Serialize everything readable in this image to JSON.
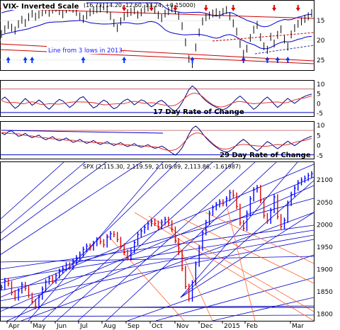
{
  "chart_data": [
    {
      "panel": "vix",
      "type": "line",
      "title": "VIX- Inverted Scale",
      "value_readout": "(16.73, 14.20, 12.60, 13.24, +0.15000)",
      "yticks": [
        "15",
        "20",
        "25"
      ],
      "yscale": "inverted",
      "annotation": "Line from 3 lows in 2013.",
      "colors": {
        "price": "#000000",
        "band": "#0000cc",
        "trend": "#cc0000",
        "arrow_up": "#0033ff",
        "arrow_down": "#dd0000"
      },
      "values": [
        18.4,
        17.2,
        16.1,
        16.8,
        17.5,
        15.9,
        14.8,
        15.6,
        14.1,
        13.2,
        14.0,
        13.5,
        12.9,
        12.3,
        13.0,
        12.2,
        11.8,
        12.6,
        13.4,
        12.1,
        11.6,
        12.0,
        12.8,
        13.9,
        14.6,
        13.7,
        12.9,
        12.4,
        12.1,
        11.9,
        11.4,
        12.2,
        13.8,
        15.6,
        16.9,
        15.2,
        14.0,
        13.1,
        12.8,
        12.4,
        13.5,
        12.9,
        12.0,
        11.7,
        11.5,
        12.3,
        13.6,
        14.4,
        13.2,
        12.6,
        11.9,
        12.4,
        13.8,
        16.4,
        20.5,
        24.7,
        26.2,
        21.8,
        18.0,
        15.2,
        14.1,
        13.7,
        13.2,
        12.9,
        13.5,
        12.8,
        12.3,
        13.9,
        15.7,
        17.8,
        20.9,
        23.4,
        22.1,
        19.4,
        17.3,
        16.1,
        19.2,
        21.5,
        22.4,
        19.1,
        20.8,
        18.6,
        17.2,
        19.8,
        21.6,
        18.5,
        16.9,
        15.8,
        15.2,
        14.6,
        13.9,
        13.1
      ]
    },
    {
      "panel": "roc17",
      "type": "line",
      "title": "17 Day Rate of Change",
      "yticks": [
        "10",
        "5",
        "0",
        "-5"
      ],
      "colors": {
        "line": "#000080",
        "signal": "#dd2222",
        "hline": "#0000cc"
      },
      "values": [
        2.1,
        3.4,
        1.8,
        -0.6,
        -2.4,
        -1.2,
        0.9,
        2.6,
        1.1,
        -0.8,
        0.4,
        1.9,
        0.6,
        -1.5,
        -2.8,
        -1.1,
        0.8,
        2.2,
        1.4,
        -0.3,
        -1.9,
        -0.7,
        1.2,
        2.9,
        3.6,
        1.7,
        -0.4,
        -2.2,
        -1.3,
        0.5,
        1.8,
        0.9,
        -1.1,
        -2.6,
        -1.8,
        0.2,
        1.6,
        2.4,
        1.1,
        -0.6,
        0.7,
        2.0,
        1.3,
        -0.2,
        -1.6,
        -0.5,
        1.0,
        1.7,
        0.4,
        -1.4,
        -2.9,
        -3.8,
        -2.1,
        0.6,
        3.8,
        7.2,
        9.1,
        7.6,
        5.2,
        3.1,
        1.4,
        0.2,
        -0.9,
        -1.8,
        -2.6,
        -3.1,
        -2.4,
        -1.0,
        0.8,
        2.6,
        3.9,
        2.4,
        0.6,
        -1.2,
        -2.9,
        -1.6,
        0.3,
        2.1,
        3.4,
        1.8,
        -0.2,
        -1.9,
        -0.6,
        1.2,
        2.7,
        1.3,
        0.2,
        1.4,
        2.9,
        3.8,
        4.4,
        4.9
      ]
    },
    {
      "panel": "roc29",
      "type": "line",
      "title": "29 Day Rate of Change",
      "yticks": [
        "10",
        "5",
        "0",
        "-5"
      ],
      "colors": {
        "line": "#000080",
        "signal": "#dd2222",
        "hline": "#0000cc"
      },
      "values": [
        6.2,
        5.4,
        6.8,
        7.3,
        5.9,
        4.6,
        5.1,
        6.0,
        4.8,
        3.9,
        4.5,
        5.2,
        3.7,
        2.9,
        3.6,
        4.4,
        3.1,
        2.4,
        3.0,
        3.8,
        2.7,
        1.6,
        2.2,
        3.1,
        2.0,
        1.1,
        1.7,
        2.5,
        1.4,
        0.6,
        1.2,
        2.0,
        0.9,
        0.1,
        0.8,
        1.5,
        0.3,
        -0.4,
        0.2,
        1.0,
        -0.1,
        -0.8,
        -0.2,
        0.5,
        -0.6,
        -1.3,
        -0.9,
        -0.2,
        -1.1,
        -2.4,
        -3.6,
        -4.6,
        -3.2,
        -1.0,
        2.2,
        5.6,
        8.4,
        9.6,
        8.1,
        5.9,
        3.8,
        2.1,
        0.6,
        -0.7,
        -1.8,
        -2.7,
        -3.2,
        -2.6,
        -1.3,
        0.4,
        1.9,
        3.1,
        1.8,
        0.2,
        -1.4,
        -2.6,
        -1.2,
        0.5,
        2.0,
        1.1,
        -0.4,
        -1.5,
        -0.3,
        1.0,
        2.2,
        1.0,
        0.0,
        1.1,
        2.4,
        3.3,
        4.0,
        4.6
      ]
    },
    {
      "panel": "spx",
      "type": "line",
      "title": "SPX",
      "value_readout": "(2,115.30, 2,119.59, 2,109.89, 2,113.86, -1.61987)",
      "yticks": [
        "2100",
        "2050",
        "2000",
        "1950",
        "1900",
        "1850",
        "1800"
      ],
      "ylim": [
        1785,
        2140
      ],
      "xlabels": [
        "Apr",
        "May",
        "Jun",
        "Jul",
        "Aug",
        "Sep",
        "Oct",
        "Nov",
        "Dec",
        "2015",
        "Feb",
        "Mar"
      ],
      "colors": {
        "up": "#0000ff",
        "down": "#dd0000",
        "trendline": "#0000cc",
        "fan": "#ff6633",
        "level": "#222288"
      },
      "values": [
        1860,
        1875,
        1868,
        1848,
        1836,
        1852,
        1866,
        1858,
        1842,
        1828,
        1817,
        1838,
        1856,
        1872,
        1880,
        1874,
        1886,
        1896,
        1902,
        1910,
        1905,
        1918,
        1926,
        1934,
        1945,
        1952,
        1948,
        1958,
        1966,
        1962,
        1955,
        1972,
        1980,
        1978,
        1967,
        1952,
        1938,
        1926,
        1942,
        1960,
        1978,
        1986,
        1994,
        2002,
        2008,
        2003,
        1996,
        2006,
        2012,
        2004,
        1990,
        1964,
        1938,
        1902,
        1862,
        1834,
        1870,
        1912,
        1948,
        1982,
        2005,
        2026,
        2038,
        2045,
        2051,
        2047,
        2058,
        2072,
        2066,
        2041,
        2004,
        1992,
        2026,
        2058,
        2078,
        2083,
        2054,
        2020,
        2008,
        2032,
        2062,
        2018,
        1996,
        2010,
        2048,
        2068,
        2082,
        2094,
        2100,
        2104,
        2110,
        2114
      ]
    }
  ]
}
